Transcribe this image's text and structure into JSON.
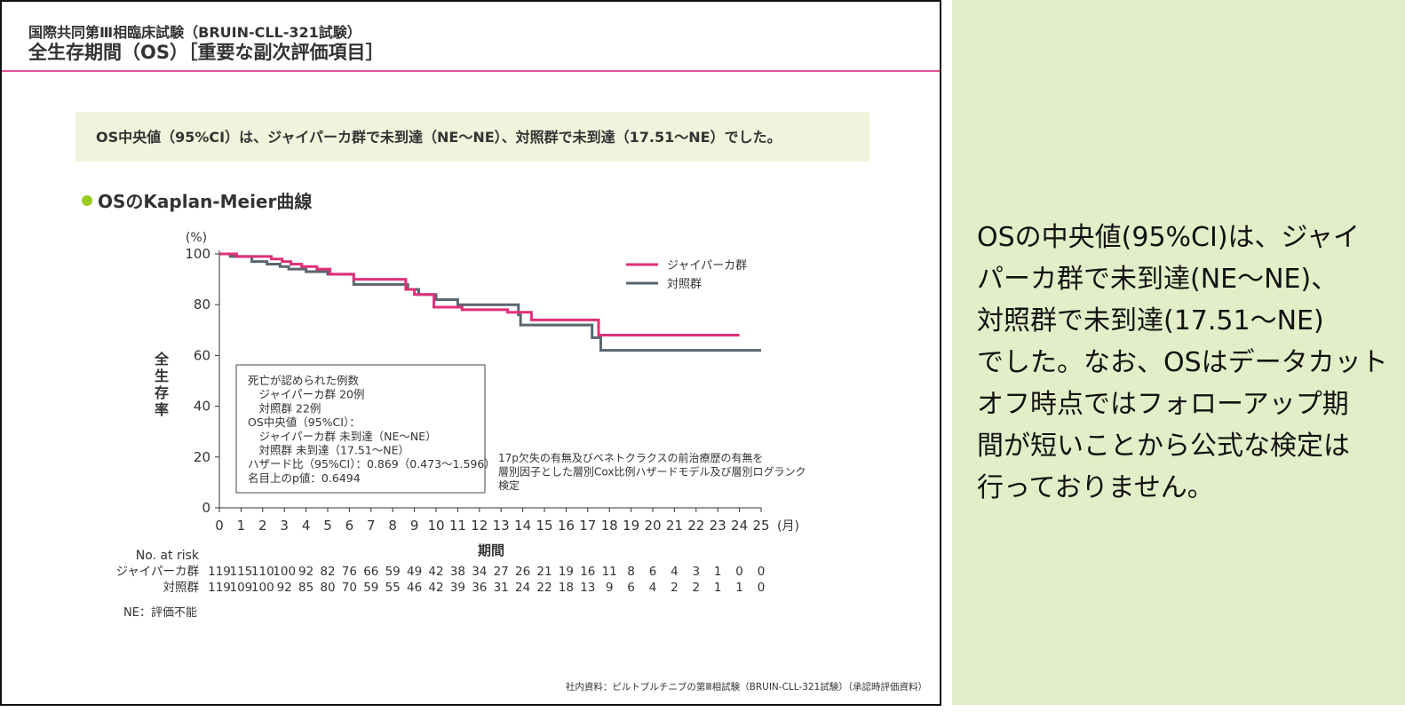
{
  "header": {
    "subtitle": "国際共同第Ⅲ相臨床試験（BRUIN-CLL-321試験）",
    "title": "全生存期間（OS）［重要な副次評価項目］"
  },
  "summary": "OS中央値（95%CI）は、ジャイパーカ群で未到達（NE～NE）、対照群で未到達（17.51～NE）でした。",
  "section": "OSのKaplan-Meier曲線",
  "chart_data": {
    "type": "step",
    "y_unit": "(%)",
    "x_unit": "(月)",
    "ylabel": "全生存率",
    "xlabel": "期間",
    "xlim": [
      0,
      25
    ],
    "xticks": [
      0,
      1,
      2,
      3,
      4,
      5,
      6,
      7,
      8,
      9,
      10,
      11,
      12,
      13,
      14,
      15,
      16,
      17,
      18,
      19,
      20,
      21,
      22,
      23,
      24,
      25
    ],
    "ylim": [
      0,
      100
    ],
    "yticks": [
      0,
      20,
      40,
      60,
      80,
      100
    ],
    "legend": "upper right",
    "series": [
      {
        "name": "ジャイパーカ群",
        "color": "#e0307a",
        "x": [
          0,
          0.8,
          2.4,
          2.9,
          3.3,
          3.8,
          4.5,
          5.1,
          6.2,
          8.6,
          9.0,
          9.9,
          11.2,
          13.3,
          14.4,
          17.5,
          24
        ],
        "values": [
          100,
          99,
          98,
          97,
          96,
          95,
          94,
          92,
          90,
          86,
          84,
          79,
          78,
          77,
          74,
          68,
          68
        ]
      },
      {
        "name": "対照群",
        "color": "#5a6670",
        "x": [
          0,
          0.5,
          1.5,
          2.2,
          2.8,
          3.2,
          4.0,
          5.0,
          6.2,
          8.7,
          9.2,
          10.0,
          11.0,
          13.8,
          13.9,
          17.2,
          17.6,
          25
        ],
        "values": [
          100,
          99,
          97,
          96,
          95,
          94,
          93,
          92,
          88,
          86,
          84,
          82,
          80,
          76,
          72,
          67,
          62,
          62
        ]
      }
    ],
    "info_box": [
      "死亡が認められた例数",
      "　ジャイパーカ群 20例",
      "　対照群 22例",
      "OS中央値（95%CI）：",
      "　ジャイパーカ群 未到達（NE～NE）",
      "　対照群 未到達（17.51～NE）",
      "ハザード比（95%CI）：0.869（0.473～1.596）",
      "名目上のp値：0.6494"
    ],
    "note": [
      "17p欠失の有無及びベネトクラクスの前治療歴の有無を",
      "層別因子とした層別Cox比例ハザードモデル及び層別ログランク",
      "検定"
    ]
  },
  "risk_table": {
    "title": "No. at risk",
    "rows": [
      {
        "label": "ジャイパーカ群",
        "values": [
          119,
          115,
          110,
          100,
          92,
          82,
          76,
          66,
          59,
          49,
          42,
          38,
          34,
          27,
          26,
          21,
          19,
          16,
          11,
          8,
          6,
          4,
          3,
          1,
          0,
          0
        ]
      },
      {
        "label": "対照群",
        "values": [
          119,
          109,
          100,
          92,
          85,
          80,
          70,
          59,
          55,
          46,
          42,
          39,
          36,
          31,
          24,
          22,
          18,
          13,
          9,
          6,
          4,
          2,
          2,
          1,
          1,
          0
        ]
      }
    ]
  },
  "footnote": "NE：評価不能",
  "source": "社内資料：ピルトブルチニブの第Ⅲ相試験（BRUIN-CLL-321試験）（承認時評価資料）",
  "side_text": [
    "OSの中央値(95%CI)は、ジャイ",
    "パーカ群で未到達(NE～NE)、",
    "対照群で未到達(17.51～NE)",
    "でした。なお、OSはデータカット",
    "オフ時点ではフォローアップ期",
    "間が短いことから公式な検定は",
    "行っておりません。"
  ]
}
